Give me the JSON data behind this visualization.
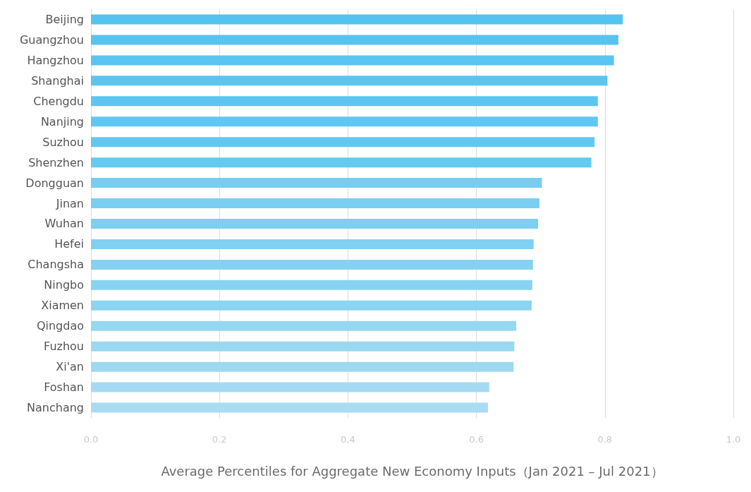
{
  "chart_data": {
    "type": "bar",
    "orientation": "horizontal",
    "xlabel": "Average Percentiles for Aggregate New Economy Inputs（Jan 2021 – Jul 2021）",
    "categories": [
      "Beijing",
      "Guangzhou",
      "Hangzhou",
      "Shanghai",
      "Chengdu",
      "Nanjing",
      "Suzhou",
      "Shenzhen",
      "Dongguan",
      "Jinan",
      "Wuhan",
      "Hefei",
      "Changsha",
      "Ningbo",
      "Xiamen",
      "Qingdao",
      "Fuzhou",
      "Xi'an",
      "Foshan",
      "Nanchang"
    ],
    "values": [
      0.828,
      0.821,
      0.814,
      0.804,
      0.789,
      0.789,
      0.784,
      0.779,
      0.702,
      0.698,
      0.696,
      0.689,
      0.688,
      0.687,
      0.686,
      0.662,
      0.659,
      0.658,
      0.62,
      0.618
    ],
    "colors": [
      "#55c3f0",
      "#57c4f0",
      "#59c5f0",
      "#5bc5f0",
      "#5dc6f0",
      "#60c7f0",
      "#63c8f1",
      "#66c9f1",
      "#76cdf1",
      "#79cef1",
      "#7ccff1",
      "#80d0f2",
      "#84d2f2",
      "#88d3f2",
      "#8bd4f2",
      "#96d7f2",
      "#9ad8f2",
      "#9ed9f2",
      "#a4dbf3",
      "#a8dcf3"
    ],
    "xlim": [
      0,
      1
    ],
    "xticks": [
      {
        "value": 0,
        "label": "0.0"
      },
      0.2,
      0.4,
      0.6,
      0.8,
      {
        "value": 1,
        "label": "1.0"
      }
    ],
    "grid": "x"
  }
}
